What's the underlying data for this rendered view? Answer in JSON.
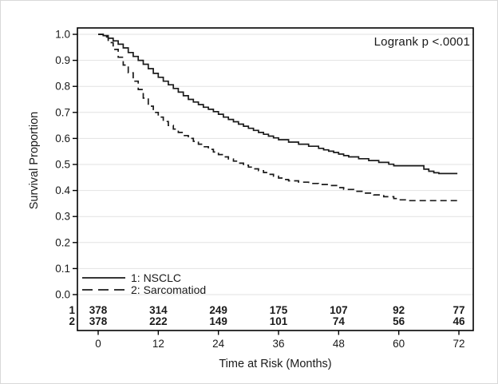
{
  "figure": {
    "background": "#ffffff",
    "line_color": "#1a1a1a",
    "grid_color": "#e2e2e2",
    "frame_color": "#000000"
  },
  "chart_data": {
    "type": "line",
    "subtype": "kaplan-meier-step-curve",
    "title": "",
    "xlabel": "Time at Risk (Months)",
    "ylabel": "Survival Proportion",
    "annotation": "Logrank p <.0001",
    "xlim": [
      0,
      72
    ],
    "ylim": [
      0.0,
      1.0
    ],
    "x_ticks": [
      0,
      12,
      24,
      36,
      48,
      60,
      72
    ],
    "y_ticks": [
      0.0,
      0.1,
      0.2,
      0.3,
      0.4,
      0.5,
      0.6,
      0.7,
      0.8,
      0.9,
      1.0
    ],
    "grid": "horizontal-only",
    "legend_position": "inside-bottom-left",
    "series": [
      {
        "name": "1: NSCLC",
        "line_style": "solid",
        "points": [
          [
            0,
            1.0
          ],
          [
            1,
            0.995
          ],
          [
            2,
            0.985
          ],
          [
            3,
            0.975
          ],
          [
            4,
            0.962
          ],
          [
            5,
            0.948
          ],
          [
            6,
            0.93
          ],
          [
            7,
            0.915
          ],
          [
            8,
            0.9
          ],
          [
            9,
            0.885
          ],
          [
            10,
            0.868
          ],
          [
            11,
            0.85
          ],
          [
            12,
            0.835
          ],
          [
            13,
            0.82
          ],
          [
            14,
            0.806
          ],
          [
            15,
            0.792
          ],
          [
            16,
            0.778
          ],
          [
            17,
            0.764
          ],
          [
            18,
            0.75
          ],
          [
            19,
            0.74
          ],
          [
            20,
            0.73
          ],
          [
            21,
            0.72
          ],
          [
            22,
            0.712
          ],
          [
            23,
            0.703
          ],
          [
            24,
            0.693
          ],
          [
            25,
            0.682
          ],
          [
            26,
            0.673
          ],
          [
            27,
            0.664
          ],
          [
            28,
            0.655
          ],
          [
            29,
            0.647
          ],
          [
            30,
            0.639
          ],
          [
            31,
            0.631
          ],
          [
            32,
            0.623
          ],
          [
            33,
            0.616
          ],
          [
            34,
            0.609
          ],
          [
            35,
            0.602
          ],
          [
            36,
            0.595
          ],
          [
            38,
            0.586
          ],
          [
            40,
            0.578
          ],
          [
            42,
            0.57
          ],
          [
            44,
            0.562
          ],
          [
            45,
            0.556
          ],
          [
            46,
            0.551
          ],
          [
            47,
            0.546
          ],
          [
            48,
            0.54
          ],
          [
            49,
            0.534
          ],
          [
            50,
            0.529
          ],
          [
            52,
            0.522
          ],
          [
            54,
            0.515
          ],
          [
            56,
            0.508
          ],
          [
            58,
            0.501
          ],
          [
            59,
            0.495
          ],
          [
            65,
            0.482
          ],
          [
            66,
            0.474
          ],
          [
            67,
            0.468
          ],
          [
            68,
            0.465
          ],
          [
            71.7,
            0.465
          ]
        ]
      },
      {
        "name": "2: Sarcomatiod",
        "line_style": "dashed",
        "points": [
          [
            0,
            1.0
          ],
          [
            1,
            0.99
          ],
          [
            2,
            0.968
          ],
          [
            3,
            0.942
          ],
          [
            4,
            0.912
          ],
          [
            5,
            0.882
          ],
          [
            6,
            0.852
          ],
          [
            7,
            0.82
          ],
          [
            8,
            0.788
          ],
          [
            9,
            0.755
          ],
          [
            10,
            0.724
          ],
          [
            11,
            0.7
          ],
          [
            12,
            0.682
          ],
          [
            13,
            0.665
          ],
          [
            14,
            0.65
          ],
          [
            15,
            0.636
          ],
          [
            16,
            0.623
          ],
          [
            17,
            0.611
          ],
          [
            18,
            0.6
          ],
          [
            19,
            0.589
          ],
          [
            20,
            0.578
          ],
          [
            21,
            0.568
          ],
          [
            22,
            0.558
          ],
          [
            23,
            0.548
          ],
          [
            24,
            0.538
          ],
          [
            25,
            0.529
          ],
          [
            26,
            0.521
          ],
          [
            27,
            0.513
          ],
          [
            28,
            0.505
          ],
          [
            29,
            0.497
          ],
          [
            30,
            0.49
          ],
          [
            31,
            0.483
          ],
          [
            32,
            0.476
          ],
          [
            33,
            0.469
          ],
          [
            34,
            0.462
          ],
          [
            35,
            0.455
          ],
          [
            36,
            0.448
          ],
          [
            37,
            0.442
          ],
          [
            38,
            0.437
          ],
          [
            40,
            0.432
          ],
          [
            42,
            0.427
          ],
          [
            44,
            0.423
          ],
          [
            46,
            0.419
          ],
          [
            48,
            0.411
          ],
          [
            49,
            0.404
          ],
          [
            51,
            0.397
          ],
          [
            53,
            0.39
          ],
          [
            55,
            0.383
          ],
          [
            57,
            0.376
          ],
          [
            59,
            0.369
          ],
          [
            60,
            0.364
          ],
          [
            62,
            0.361
          ],
          [
            72.3,
            0.361
          ]
        ]
      }
    ],
    "at_risk_table": {
      "row_labels": [
        "1",
        "2"
      ],
      "time_points": [
        0,
        12,
        24,
        36,
        48,
        60,
        72
      ],
      "rows": [
        [
          378,
          314,
          249,
          175,
          107,
          92,
          77
        ],
        [
          378,
          222,
          149,
          101,
          74,
          56,
          46
        ]
      ]
    }
  },
  "legend": {
    "items": [
      {
        "label": "1: NSCLC",
        "style": "solid"
      },
      {
        "label": "2: Sarcomatiod",
        "style": "dashed"
      }
    ]
  }
}
